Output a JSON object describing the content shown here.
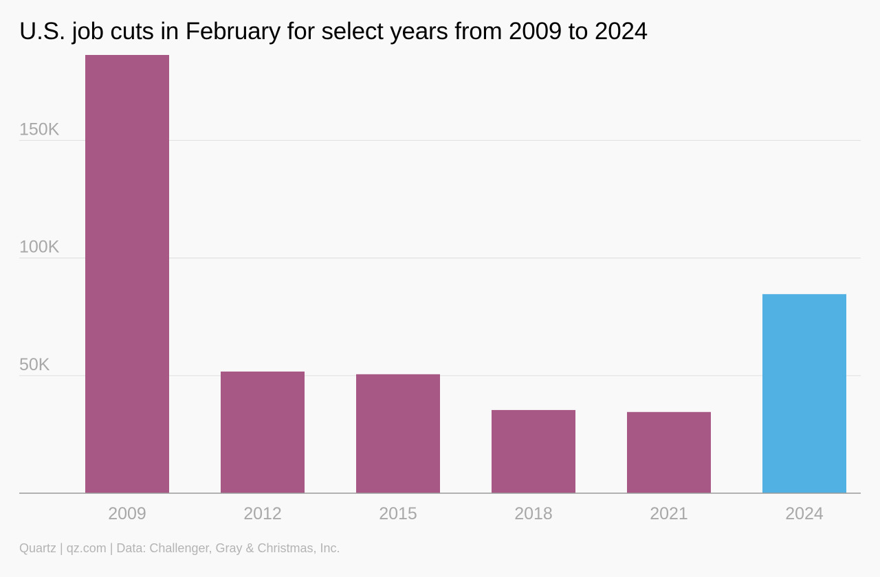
{
  "chart_data": {
    "type": "bar",
    "title": "U.S. job cuts in February for select years from 2009 to 2024",
    "xlabel": "",
    "ylabel": "",
    "categories": [
      "2009",
      "2012",
      "2015",
      "2018",
      "2021",
      "2024"
    ],
    "values": [
      186350,
      51728,
      50579,
      35369,
      34531,
      84638
    ],
    "colors": [
      "#a85884",
      "#a85884",
      "#a85884",
      "#a85884",
      "#a85884",
      "#51b1e3"
    ],
    "ylim": [
      0,
      186350
    ],
    "yticks": [
      50000,
      100000,
      150000
    ],
    "ytick_labels": [
      "50K",
      "100K",
      "150K"
    ],
    "grid": true,
    "legend": "none",
    "credit": "Quartz | qz.com | Data: Challenger, Gray & Christmas, Inc."
  },
  "colors": {
    "background": "#f9f9f9",
    "default_bar": "#a85884",
    "highlight_bar": "#51b1e3",
    "gridline": "#e2e2e2",
    "axis": "#9a9a9a",
    "tick_text": "#a8a8a8",
    "credit_text": "#b4b4b4"
  }
}
